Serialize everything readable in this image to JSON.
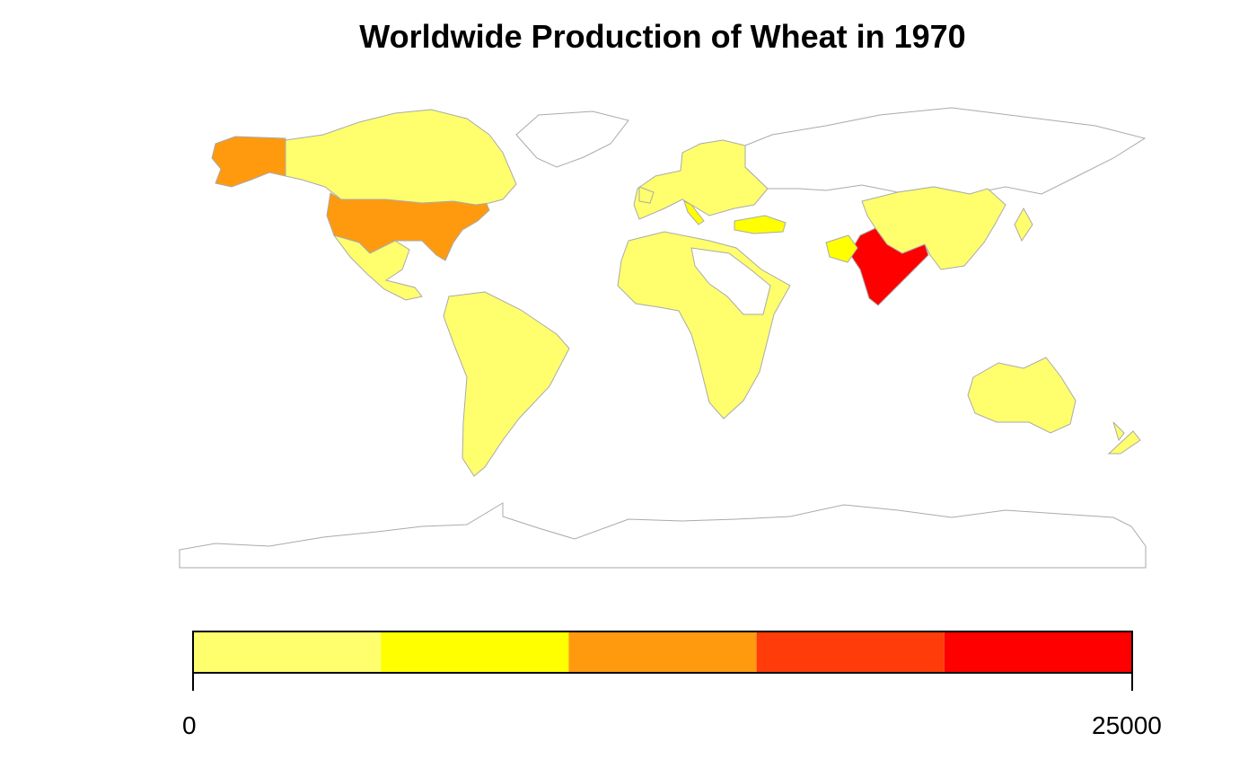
{
  "title": "Worldwide Production of Wheat in 1970",
  "legend": {
    "min_label": "0",
    "max_label": "25000",
    "classes": [
      {
        "from": 0,
        "to": 5000,
        "color": "#FFFF6E"
      },
      {
        "from": 5000,
        "to": 10000,
        "color": "#FFFF00"
      },
      {
        "from": 10000,
        "to": 15000,
        "color": "#FF9A0E"
      },
      {
        "from": 15000,
        "to": 20000,
        "color": "#FF3C0A"
      },
      {
        "from": 20000,
        "to": 25000,
        "color": "#FF0000"
      }
    ]
  },
  "colors": {
    "border": "#AAAAAA",
    "no_data": "#FFFFFF"
  },
  "regions": [
    {
      "name": "United States",
      "class": 2
    },
    {
      "name": "Alaska",
      "class": 2
    },
    {
      "name": "India",
      "class": 4
    },
    {
      "name": "Turkey",
      "class": 1
    },
    {
      "name": "Pakistan",
      "class": 1
    },
    {
      "name": "Italy",
      "class": 1
    },
    {
      "name": "Canada",
      "class": 0
    },
    {
      "name": "Greenland",
      "class": -1
    },
    {
      "name": "Mexico",
      "class": 0
    },
    {
      "name": "South America",
      "class": 0
    },
    {
      "name": "Europe",
      "class": 0
    },
    {
      "name": "Russia",
      "class": -1
    },
    {
      "name": "China",
      "class": 0
    },
    {
      "name": "Africa",
      "class": 0
    },
    {
      "name": "Sahara",
      "class": -1
    },
    {
      "name": "Australia",
      "class": 0
    },
    {
      "name": "Antarctica",
      "class": -1
    }
  ]
}
